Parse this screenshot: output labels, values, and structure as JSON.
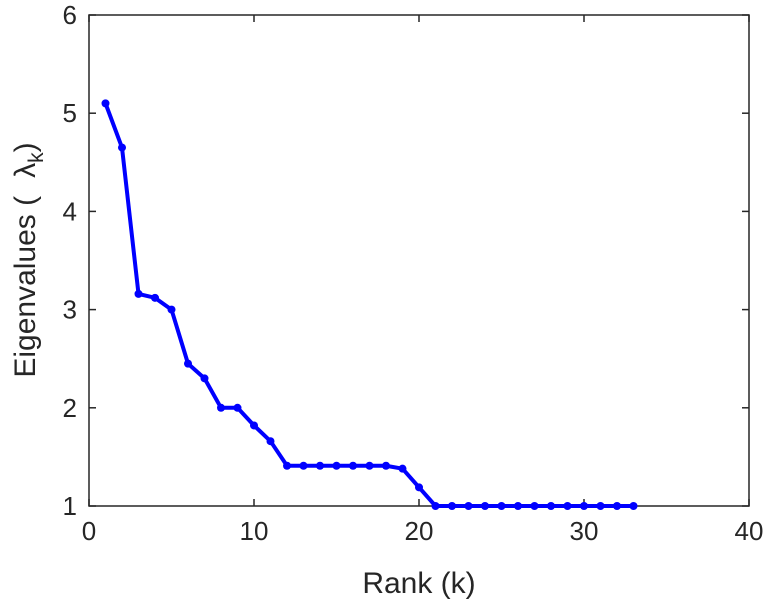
{
  "chart_data": {
    "type": "line",
    "title": "",
    "xlabel": "Rank (k)",
    "ylabel_prefix": "Eigenvalues (",
    "ylabel_symbol": "λ",
    "ylabel_subscript": "k",
    "ylabel_suffix": ")",
    "xlim": [
      0,
      40
    ],
    "ylim": [
      1,
      6
    ],
    "xticks": [
      "0",
      "10",
      "20",
      "30",
      "40"
    ],
    "yticks": [
      "1",
      "2",
      "3",
      "4",
      "5",
      "6"
    ],
    "grid": false,
    "line_color": "#0000ff",
    "series": [
      {
        "x": [
          1,
          2,
          3,
          4,
          5,
          6,
          7,
          8,
          9,
          10,
          11,
          12,
          13,
          14,
          15,
          16,
          17,
          18,
          19,
          20,
          21,
          22,
          23,
          24,
          25,
          26,
          27,
          28,
          29,
          30,
          31,
          32,
          33
        ],
        "values": [
          5.1,
          4.65,
          3.16,
          3.12,
          3.0,
          2.45,
          2.3,
          2.0,
          2.0,
          1.82,
          1.66,
          1.41,
          1.41,
          1.41,
          1.41,
          1.41,
          1.41,
          1.41,
          1.38,
          1.19,
          1.0,
          1.0,
          1.0,
          1.0,
          1.0,
          1.0,
          1.0,
          1.0,
          1.0,
          1.0,
          1.0,
          1.0,
          1.0
        ]
      }
    ]
  }
}
